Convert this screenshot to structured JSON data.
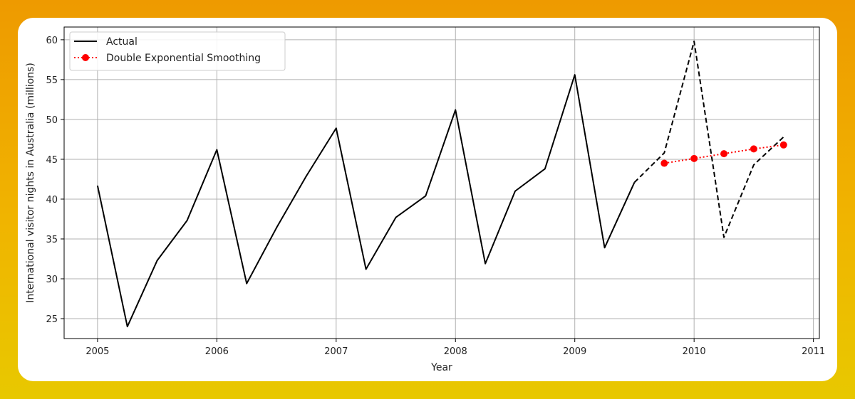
{
  "chart_data": {
    "type": "line",
    "xlabel": "Year",
    "ylabel": "International visitor nights in Australia (millions)",
    "xlim": [
      2004.72,
      2011.05
    ],
    "ylim": [
      22.5,
      61.6
    ],
    "xticks": [
      2005,
      2006,
      2007,
      2008,
      2009,
      2010,
      2011
    ],
    "yticks": [
      25,
      30,
      35,
      40,
      45,
      50,
      55,
      60
    ],
    "grid": true,
    "legend_position": "top-left",
    "series": [
      {
        "name": "Actual",
        "style": "solid",
        "color": "#000000",
        "x": [
          2005.0,
          2005.25,
          2005.5,
          2005.75,
          2006.0,
          2006.25,
          2006.5,
          2006.75,
          2007.0,
          2007.25,
          2007.5,
          2007.75,
          2008.0,
          2008.25,
          2008.5,
          2008.75,
          2009.0,
          2009.25,
          2009.5
        ],
        "values": [
          41.7,
          24.0,
          32.3,
          37.3,
          46.2,
          29.4,
          36.4,
          42.9,
          48.9,
          31.2,
          37.7,
          40.4,
          51.2,
          31.9,
          41.0,
          43.8,
          55.6,
          33.9,
          42.1
        ]
      },
      {
        "name": "",
        "style": "dashed",
        "color": "#000000",
        "x": [
          2009.5,
          2009.75,
          2010.0,
          2010.25,
          2010.5,
          2010.75
        ],
        "values": [
          42.1,
          45.8,
          59.8,
          35.2,
          44.3,
          47.8
        ]
      },
      {
        "name": "Double Exponential Smoothing",
        "style": "dotted",
        "marker": "circle",
        "color": "#ff0000",
        "x": [
          2009.75,
          2010.0,
          2010.25,
          2010.5,
          2010.75
        ],
        "values": [
          44.5,
          45.1,
          45.7,
          46.3,
          46.8
        ]
      }
    ]
  }
}
